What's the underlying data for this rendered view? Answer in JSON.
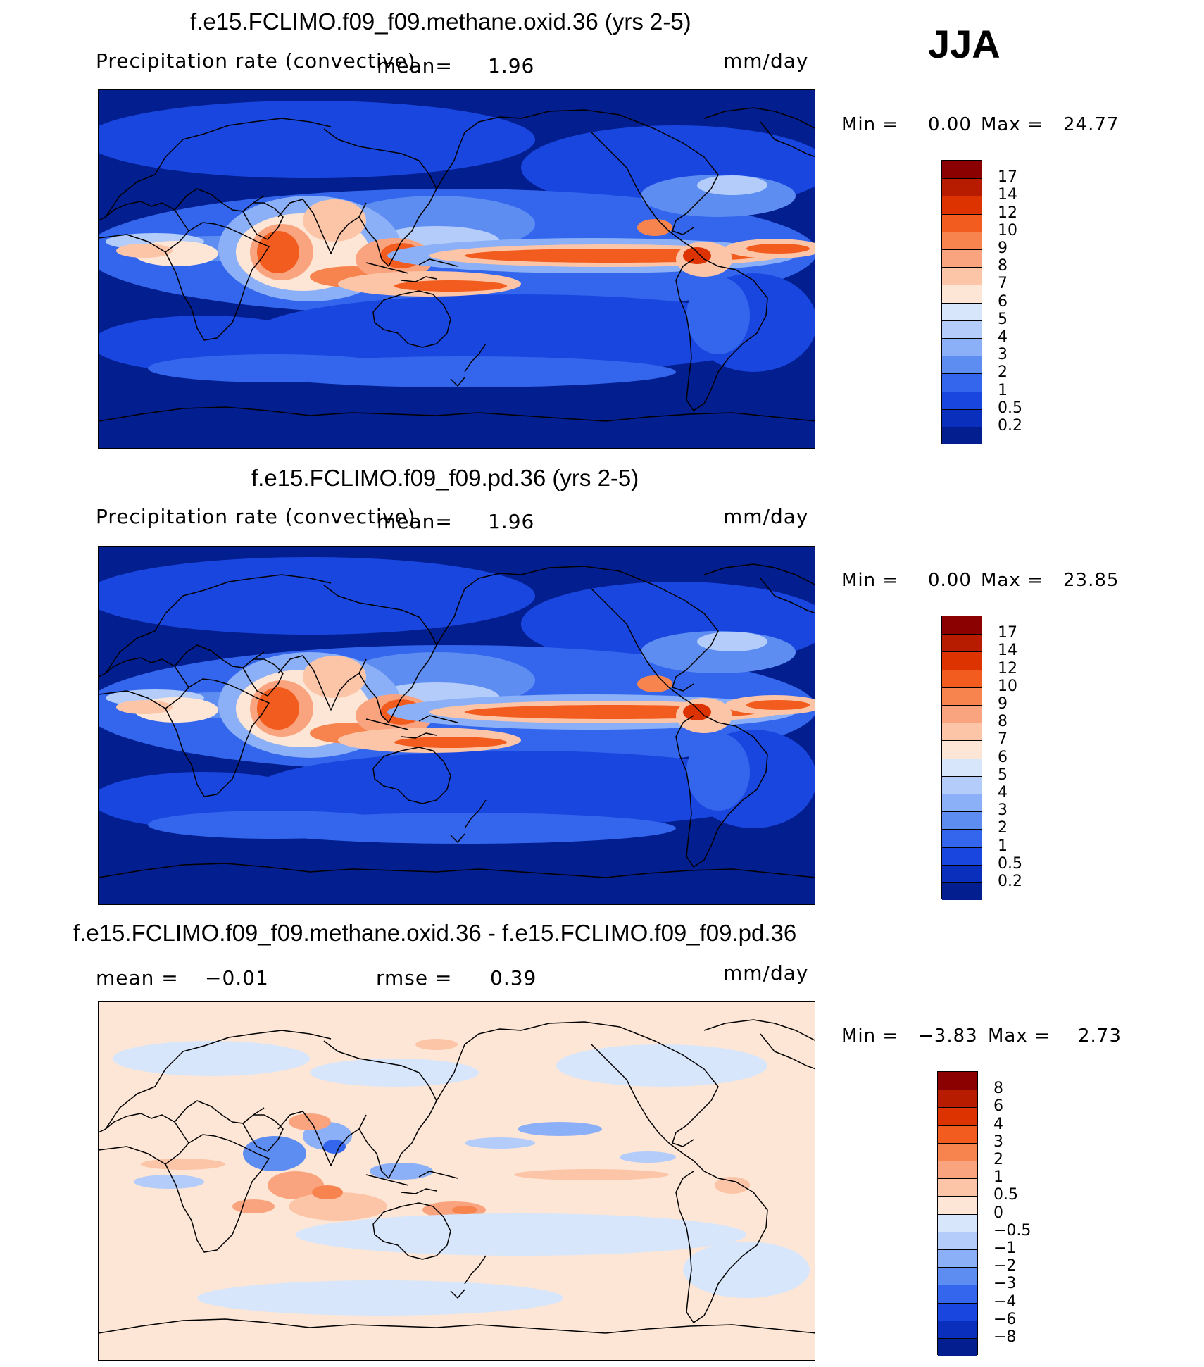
{
  "season": "JJA",
  "panels": [
    {
      "title": "f.e15.FCLIMO.f09_f09.methane.oxid.36 (yrs 2-5)",
      "variable": "Precipitation rate (convective)",
      "mean_label": "mean=",
      "mean_value": "1.96",
      "units": "mm/day",
      "min_label": "Min =",
      "min_value": "0.00",
      "max_label": "Max =",
      "max_value": "24.77"
    },
    {
      "title": "f.e15.FCLIMO.f09_f09.pd.36 (yrs 2-5)",
      "variable": "Precipitation rate (convective)",
      "mean_label": "mean=",
      "mean_value": "1.96",
      "units": "mm/day",
      "min_label": "Min =",
      "min_value": "0.00",
      "max_label": "Max =",
      "max_value": "23.85"
    },
    {
      "title": "f.e15.FCLIMO.f09_f09.methane.oxid.36 - f.e15.FCLIMO.f09_f09.pd.36",
      "mean_label": "mean =",
      "mean_value": "−0.01",
      "rmse_label": "rmse =",
      "rmse_value": "0.39",
      "units": "mm/day",
      "min_label": "Min =",
      "min_value": "−3.83",
      "max_label": "Max =",
      "max_value": "2.73"
    }
  ],
  "colorbars": {
    "precip": {
      "labels": [
        "17",
        "14",
        "12",
        "10",
        "9",
        "8",
        "7",
        "6",
        "5",
        "4",
        "3",
        "2",
        "1",
        "0.5",
        "0.2"
      ],
      "colors": [
        "#8b0000",
        "#b81c00",
        "#dd3300",
        "#f25c1f",
        "#f7844e",
        "#f9a47f",
        "#fcc5a8",
        "#fde6d5",
        "#d7e6fb",
        "#b3ccfa",
        "#8cb0f7",
        "#5e8df2",
        "#3366ec",
        "#1a46e0",
        "#0a2fbd",
        "#031e8f"
      ]
    },
    "diff": {
      "labels": [
        "8",
        "6",
        "4",
        "3",
        "2",
        "1",
        "0.5",
        "0",
        "−0.5",
        "−1",
        "−2",
        "−3",
        "−4",
        "−6",
        "−8"
      ],
      "colors": [
        "#8b0000",
        "#b81c00",
        "#dd3300",
        "#f25c1f",
        "#f7844e",
        "#f9a47f",
        "#fcc5a8",
        "#fde6d5",
        "#d7e6fb",
        "#b3ccfa",
        "#8cb0f7",
        "#5e8df2",
        "#3366ec",
        "#1a46e0",
        "#0a2fbd",
        "#031e8f"
      ]
    }
  }
}
